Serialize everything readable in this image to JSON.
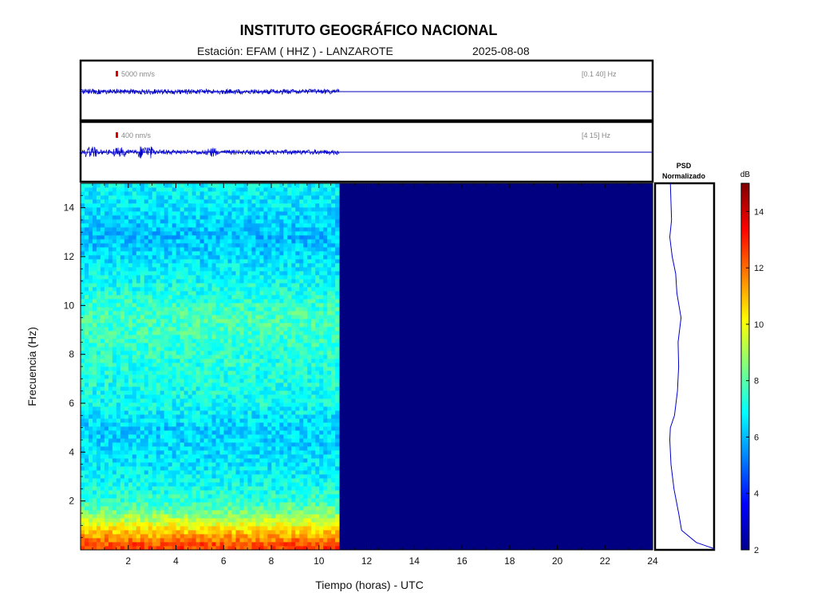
{
  "header": {
    "title": "INSTITUTO GEOGRÁFICO NACIONAL",
    "station": "Estación:  EFAM ( HHZ ) - LANZAROTE",
    "date": "2025-08-08"
  },
  "traces": [
    {
      "amplitude_label": "5000 nm/s",
      "band_label": "[0.1 40] Hz"
    },
    {
      "amplitude_label": "400 nm/s",
      "band_label": "[4 15] Hz"
    }
  ],
  "psd": {
    "title_line1": "PSD",
    "title_line2": "Normalizado"
  },
  "colorbar": {
    "unit": "dB",
    "range": [
      2,
      15
    ],
    "ticks": [
      2,
      4,
      6,
      8,
      10,
      12,
      14
    ]
  },
  "chart_data": {
    "type": "heatmap",
    "title": "INSTITUTO GEOGRÁFICO NACIONAL",
    "subtitle": "Estación:  EFAM ( HHZ ) - LANZAROTE",
    "xlabel": "Tiempo (horas) - UTC",
    "ylabel": "Frecuencia  (Hz)",
    "xlim": [
      0,
      24
    ],
    "ylim": [
      0,
      15
    ],
    "x_ticks": [
      2,
      4,
      6,
      8,
      10,
      12,
      14,
      16,
      18,
      20,
      22,
      24
    ],
    "y_ticks": [
      2,
      4,
      6,
      8,
      10,
      12,
      14
    ],
    "data_end_hour": 10.85,
    "no_data_value_db": 2,
    "colormap": "jet",
    "spectral_profile_db": [
      {
        "freq": 0.2,
        "db": 12.5
      },
      {
        "freq": 0.5,
        "db": 11.5
      },
      {
        "freq": 1.0,
        "db": 10.0
      },
      {
        "freq": 1.5,
        "db": 8.5
      },
      {
        "freq": 2.0,
        "db": 7.5
      },
      {
        "freq": 3.0,
        "db": 6.8
      },
      {
        "freq": 4.0,
        "db": 6.5
      },
      {
        "freq": 5.0,
        "db": 6.3
      },
      {
        "freq": 6.0,
        "db": 7.0
      },
      {
        "freq": 8.0,
        "db": 7.4
      },
      {
        "freq": 9.5,
        "db": 7.8
      },
      {
        "freq": 11.0,
        "db": 7.0
      },
      {
        "freq": 12.8,
        "db": 6.0
      },
      {
        "freq": 14.0,
        "db": 6.6
      },
      {
        "freq": 15.0,
        "db": 6.8
      }
    ],
    "psd_normalized": [
      {
        "freq": 0.05,
        "value": 1.0
      },
      {
        "freq": 0.3,
        "value": 0.7
      },
      {
        "freq": 0.8,
        "value": 0.45
      },
      {
        "freq": 1.5,
        "value": 0.4
      },
      {
        "freq": 2.5,
        "value": 0.32
      },
      {
        "freq": 3.5,
        "value": 0.27
      },
      {
        "freq": 4.5,
        "value": 0.25
      },
      {
        "freq": 5.0,
        "value": 0.26
      },
      {
        "freq": 5.5,
        "value": 0.33
      },
      {
        "freq": 6.5,
        "value": 0.38
      },
      {
        "freq": 7.5,
        "value": 0.4
      },
      {
        "freq": 8.5,
        "value": 0.39
      },
      {
        "freq": 9.5,
        "value": 0.44
      },
      {
        "freq": 10.5,
        "value": 0.37
      },
      {
        "freq": 11.3,
        "value": 0.35
      },
      {
        "freq": 12.0,
        "value": 0.29
      },
      {
        "freq": 12.8,
        "value": 0.25
      },
      {
        "freq": 13.5,
        "value": 0.28
      },
      {
        "freq": 14.2,
        "value": 0.27
      },
      {
        "freq": 15.0,
        "value": 0.26
      }
    ]
  }
}
